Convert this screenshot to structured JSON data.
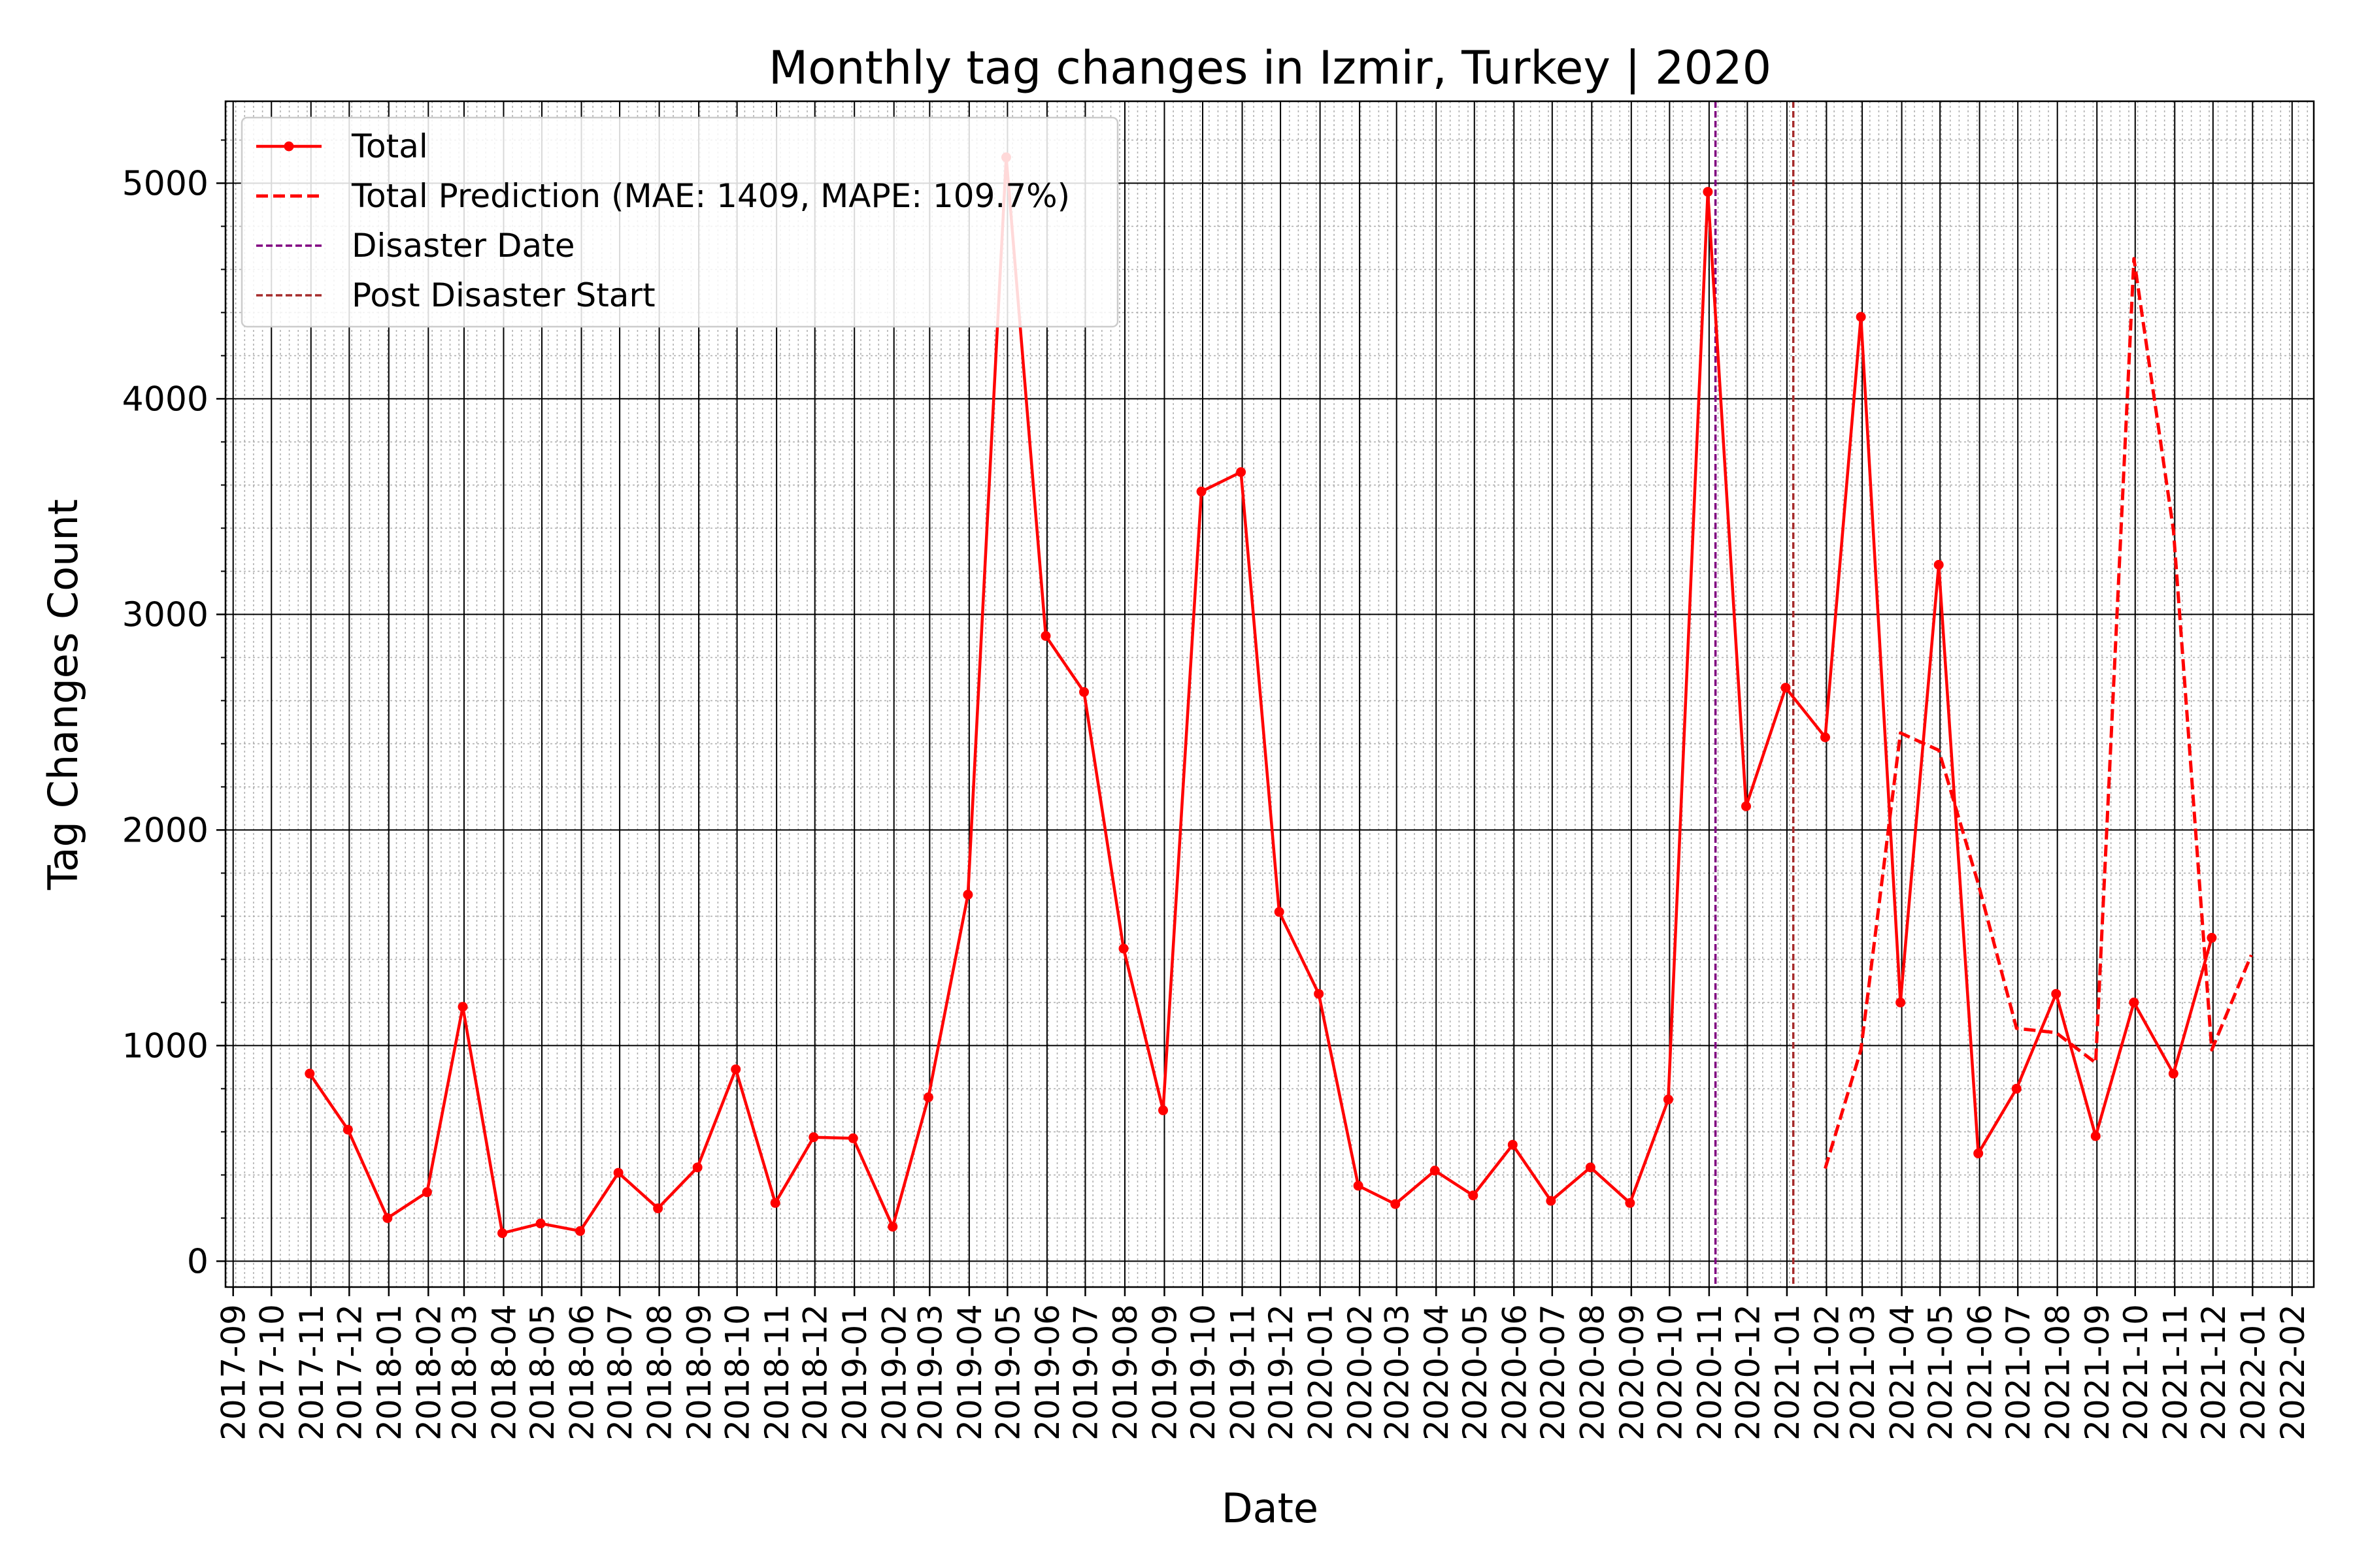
{
  "chart_data": {
    "type": "line",
    "title": "Monthly tag changes in Izmir, Turkey | 2020",
    "xlabel": "Date",
    "ylabel": "Tag Changes Count",
    "x_ticks": [
      "2017-09",
      "2017-10",
      "2017-11",
      "2017-12",
      "2018-01",
      "2018-02",
      "2018-03",
      "2018-04",
      "2018-05",
      "2018-06",
      "2018-07",
      "2018-08",
      "2018-09",
      "2018-10",
      "2018-11",
      "2018-12",
      "2019-01",
      "2019-02",
      "2019-03",
      "2019-04",
      "2019-05",
      "2019-06",
      "2019-07",
      "2019-08",
      "2019-09",
      "2019-10",
      "2019-11",
      "2019-12",
      "2020-01",
      "2020-02",
      "2020-03",
      "2020-04",
      "2020-05",
      "2020-06",
      "2020-07",
      "2020-08",
      "2020-09",
      "2020-10",
      "2020-11",
      "2020-12",
      "2021-01",
      "2021-02",
      "2021-03",
      "2021-04",
      "2021-05",
      "2021-06",
      "2021-07",
      "2021-08",
      "2021-09",
      "2021-10",
      "2021-11",
      "2021-12",
      "2022-01",
      "2022-02"
    ],
    "y_ticks": [
      0,
      1000,
      2000,
      3000,
      4000,
      5000
    ],
    "ylim": [
      -120,
      5380
    ],
    "xlim": [
      "2017-08-26",
      "2022-02-18"
    ],
    "grid": true,
    "legend_position": "top-left",
    "series": [
      {
        "name": "Total",
        "color": "#ff0000",
        "style": "solid-with-markers",
        "points": [
          [
            "2017-10-31",
            870
          ],
          [
            "2017-11-30",
            610
          ],
          [
            "2017-12-31",
            200
          ],
          [
            "2018-01-31",
            320
          ],
          [
            "2018-02-28",
            1180
          ],
          [
            "2018-03-31",
            130
          ],
          [
            "2018-04-30",
            175
          ],
          [
            "2018-05-31",
            140
          ],
          [
            "2018-06-30",
            410
          ],
          [
            "2018-07-31",
            245
          ],
          [
            "2018-08-31",
            435
          ],
          [
            "2018-09-30",
            890
          ],
          [
            "2018-10-31",
            270
          ],
          [
            "2018-11-30",
            575
          ],
          [
            "2018-12-31",
            570
          ],
          [
            "2019-01-31",
            160
          ],
          [
            "2019-02-28",
            760
          ],
          [
            "2019-03-31",
            1700
          ],
          [
            "2019-04-30",
            5120
          ],
          [
            "2019-05-31",
            2900
          ],
          [
            "2019-06-30",
            2640
          ],
          [
            "2019-07-31",
            1450
          ],
          [
            "2019-08-31",
            700
          ],
          [
            "2019-09-30",
            3570
          ],
          [
            "2019-10-31",
            3660
          ],
          [
            "2019-11-30",
            1620
          ],
          [
            "2019-12-31",
            1240
          ],
          [
            "2020-01-31",
            350
          ],
          [
            "2020-02-29",
            265
          ],
          [
            "2020-03-31",
            420
          ],
          [
            "2020-04-30",
            305
          ],
          [
            "2020-05-31",
            540
          ],
          [
            "2020-06-30",
            280
          ],
          [
            "2020-07-31",
            435
          ],
          [
            "2020-08-31",
            270
          ],
          [
            "2020-09-30",
            750
          ],
          [
            "2020-10-31",
            4960
          ],
          [
            "2020-11-30",
            2110
          ],
          [
            "2020-12-31",
            2660
          ],
          [
            "2021-01-31",
            2430
          ],
          [
            "2021-02-28",
            4380
          ],
          [
            "2021-03-31",
            1200
          ],
          [
            "2021-04-30",
            3230
          ],
          [
            "2021-05-31",
            500
          ],
          [
            "2021-06-30",
            800
          ],
          [
            "2021-07-31",
            1240
          ],
          [
            "2021-08-31",
            580
          ],
          [
            "2021-09-30",
            1200
          ],
          [
            "2021-10-31",
            870
          ],
          [
            "2021-11-30",
            1500
          ]
        ]
      },
      {
        "name": "Total Prediction (MAE: 1409, MAPE: 109.7%)",
        "color": "#ff0000",
        "style": "dashed",
        "points": [
          [
            "2021-01-31",
            430
          ],
          [
            "2021-02-28",
            980
          ],
          [
            "2021-03-31",
            2450
          ],
          [
            "2021-04-30",
            2370
          ],
          [
            "2021-05-31",
            1750
          ],
          [
            "2021-06-30",
            1080
          ],
          [
            "2021-07-31",
            1060
          ],
          [
            "2021-08-31",
            920
          ],
          [
            "2021-09-30",
            4650
          ],
          [
            "2021-10-31",
            3390
          ],
          [
            "2021-11-30",
            980
          ],
          [
            "2021-12-31",
            1420
          ]
        ]
      }
    ],
    "vlines": [
      {
        "name": "Disaster Date",
        "date": "2020-11-06",
        "color": "#800080"
      },
      {
        "name": "Post Disaster Start",
        "date": "2021-01-06",
        "color": "#a52a2a"
      }
    ]
  }
}
